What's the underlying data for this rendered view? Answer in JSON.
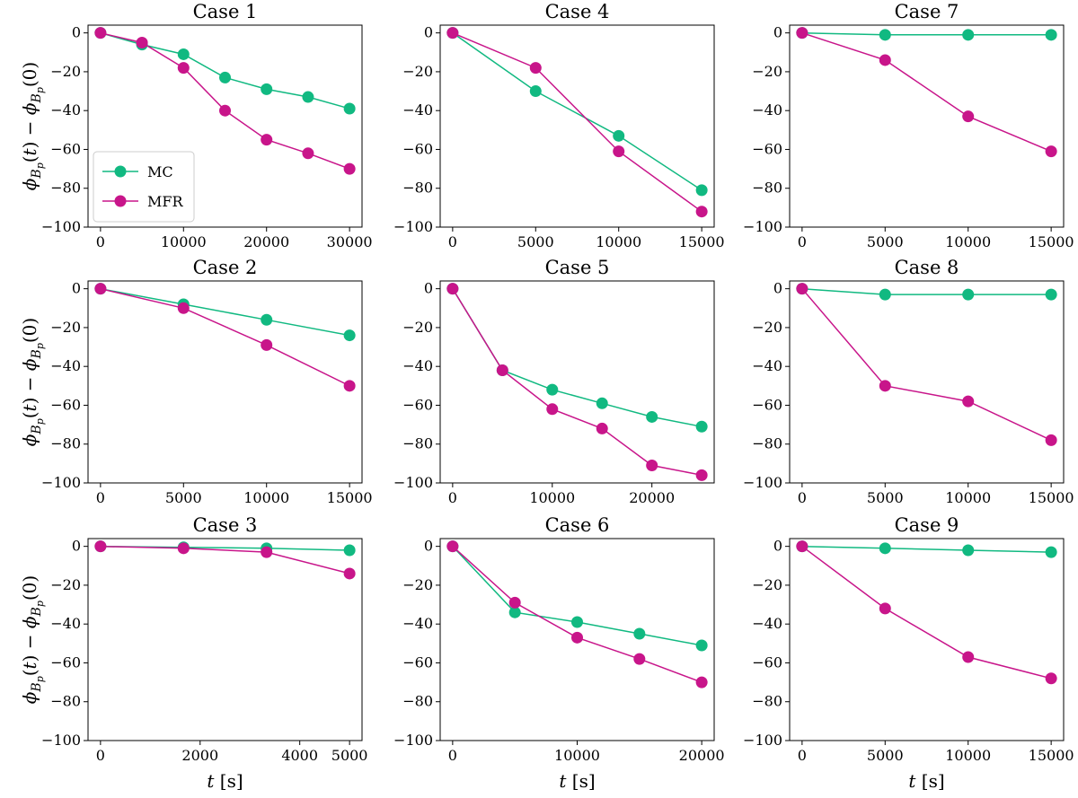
{
  "colors": {
    "MC": "#11b981",
    "MFR": "#c8158a"
  },
  "legend": {
    "entries": [
      "MC",
      "MFR"
    ]
  },
  "chart_data": [
    {
      "type": "line",
      "title": "Case 1",
      "xlabel": "",
      "ylabel": "ϕ_{B_p}(t) − ϕ_{B_p}(0)",
      "xlim": [
        -1500,
        31500
      ],
      "ylim": [
        -100,
        4
      ],
      "xticks": [
        0,
        10000,
        20000,
        30000
      ],
      "yticks": [
        0,
        -20,
        -40,
        -60,
        -80,
        -100
      ],
      "x": [
        0,
        5000,
        10000,
        15000,
        20000,
        25000,
        30000
      ],
      "series": [
        {
          "name": "MC",
          "values": [
            0,
            -6,
            -11,
            -23,
            -29,
            -33,
            -39
          ]
        },
        {
          "name": "MFR",
          "values": [
            0,
            -5,
            -18,
            -40,
            -55,
            -62,
            -70
          ]
        }
      ],
      "legend": "lower-left"
    },
    {
      "type": "line",
      "title": "Case 4",
      "xlabel": "",
      "ylabel": "",
      "xlim": [
        -750,
        15750
      ],
      "ylim": [
        -100,
        4
      ],
      "xticks": [
        0,
        5000,
        10000,
        15000
      ],
      "yticks": [
        0,
        -20,
        -40,
        -60,
        -80,
        -100
      ],
      "x": [
        0,
        5000,
        10000,
        15000
      ],
      "series": [
        {
          "name": "MC",
          "values": [
            0,
            -30,
            -53,
            -81
          ]
        },
        {
          "name": "MFR",
          "values": [
            0,
            -18,
            -61,
            -92
          ]
        }
      ]
    },
    {
      "type": "line",
      "title": "Case 7",
      "xlabel": "",
      "ylabel": "",
      "xlim": [
        -750,
        15750
      ],
      "ylim": [
        -100,
        4
      ],
      "xticks": [
        0,
        5000,
        10000,
        15000
      ],
      "yticks": [
        0,
        -20,
        -40,
        -60,
        -80,
        -100
      ],
      "x": [
        0,
        5000,
        10000,
        15000
      ],
      "series": [
        {
          "name": "MC",
          "values": [
            0,
            -1,
            -1,
            -1
          ]
        },
        {
          "name": "MFR",
          "values": [
            0,
            -14,
            -43,
            -61
          ]
        }
      ]
    },
    {
      "type": "line",
      "title": "Case 2",
      "xlabel": "",
      "ylabel": "ϕ_{B_p}(t) − ϕ_{B_p}(0)",
      "xlim": [
        -750,
        15750
      ],
      "ylim": [
        -100,
        4
      ],
      "xticks": [
        0,
        5000,
        10000,
        15000
      ],
      "yticks": [
        0,
        -20,
        -40,
        -60,
        -80,
        -100
      ],
      "x": [
        0,
        5000,
        10000,
        15000
      ],
      "series": [
        {
          "name": "MC",
          "values": [
            0,
            -8,
            -16,
            -24
          ]
        },
        {
          "name": "MFR",
          "values": [
            0,
            -10,
            -29,
            -50
          ]
        }
      ]
    },
    {
      "type": "line",
      "title": "Case 5",
      "xlabel": "",
      "ylabel": "",
      "xlim": [
        -1250,
        26250
      ],
      "ylim": [
        -100,
        4
      ],
      "xticks": [
        0,
        10000,
        20000
      ],
      "yticks": [
        0,
        -20,
        -40,
        -60,
        -80,
        -100
      ],
      "x": [
        0,
        5000,
        10000,
        15000,
        20000,
        25000
      ],
      "series": [
        {
          "name": "MC",
          "values": [
            0,
            -42,
            -52,
            -59,
            -66,
            -71
          ]
        },
        {
          "name": "MFR",
          "values": [
            0,
            -42,
            -62,
            -72,
            -91,
            -96
          ]
        }
      ]
    },
    {
      "type": "line",
      "title": "Case 8",
      "xlabel": "",
      "ylabel": "",
      "xlim": [
        -750,
        15750
      ],
      "ylim": [
        -100,
        4
      ],
      "xticks": [
        0,
        5000,
        10000,
        15000
      ],
      "yticks": [
        0,
        -20,
        -40,
        -60,
        -80,
        -100
      ],
      "x": [
        0,
        5000,
        10000,
        15000
      ],
      "series": [
        {
          "name": "MC",
          "values": [
            0,
            -3,
            -3,
            -3
          ]
        },
        {
          "name": "MFR",
          "values": [
            0,
            -50,
            -58,
            -78
          ]
        }
      ]
    },
    {
      "type": "line",
      "title": "Case 3",
      "xlabel": "t [s]",
      "ylabel": "ϕ_{B_p}(t) − ϕ_{B_p}(0)",
      "xlim": [
        -250,
        5250
      ],
      "ylim": [
        -100,
        4
      ],
      "xticks": [
        0,
        2000,
        4000,
        5000
      ],
      "yticks": [
        0,
        -20,
        -40,
        -60,
        -80,
        -100
      ],
      "x": [
        0,
        1667,
        3333,
        5000
      ],
      "series": [
        {
          "name": "MC",
          "values": [
            0,
            -0.5,
            -1,
            -2
          ]
        },
        {
          "name": "MFR",
          "values": [
            0,
            -1,
            -3,
            -14
          ]
        }
      ]
    },
    {
      "type": "line",
      "title": "Case 6",
      "xlabel": "t [s]",
      "ylabel": "",
      "xlim": [
        -1000,
        21000
      ],
      "ylim": [
        -100,
        4
      ],
      "xticks": [
        0,
        10000,
        20000
      ],
      "yticks": [
        0,
        -20,
        -40,
        -60,
        -80,
        -100
      ],
      "x": [
        0,
        5000,
        10000,
        15000,
        20000
      ],
      "series": [
        {
          "name": "MC",
          "values": [
            0,
            -34,
            -39,
            -45,
            -51
          ]
        },
        {
          "name": "MFR",
          "values": [
            0,
            -29,
            -47,
            -58,
            -70
          ]
        }
      ]
    },
    {
      "type": "line",
      "title": "Case 9",
      "xlabel": "t [s]",
      "ylabel": "",
      "xlim": [
        -750,
        15750
      ],
      "ylim": [
        -100,
        4
      ],
      "xticks": [
        0,
        5000,
        10000,
        15000
      ],
      "yticks": [
        0,
        -20,
        -40,
        -60,
        -80,
        -100
      ],
      "x": [
        0,
        5000,
        10000,
        15000
      ],
      "series": [
        {
          "name": "MC",
          "values": [
            0,
            -1,
            -2,
            -3
          ]
        },
        {
          "name": "MFR",
          "values": [
            0,
            -32,
            -57,
            -68
          ]
        }
      ]
    }
  ]
}
